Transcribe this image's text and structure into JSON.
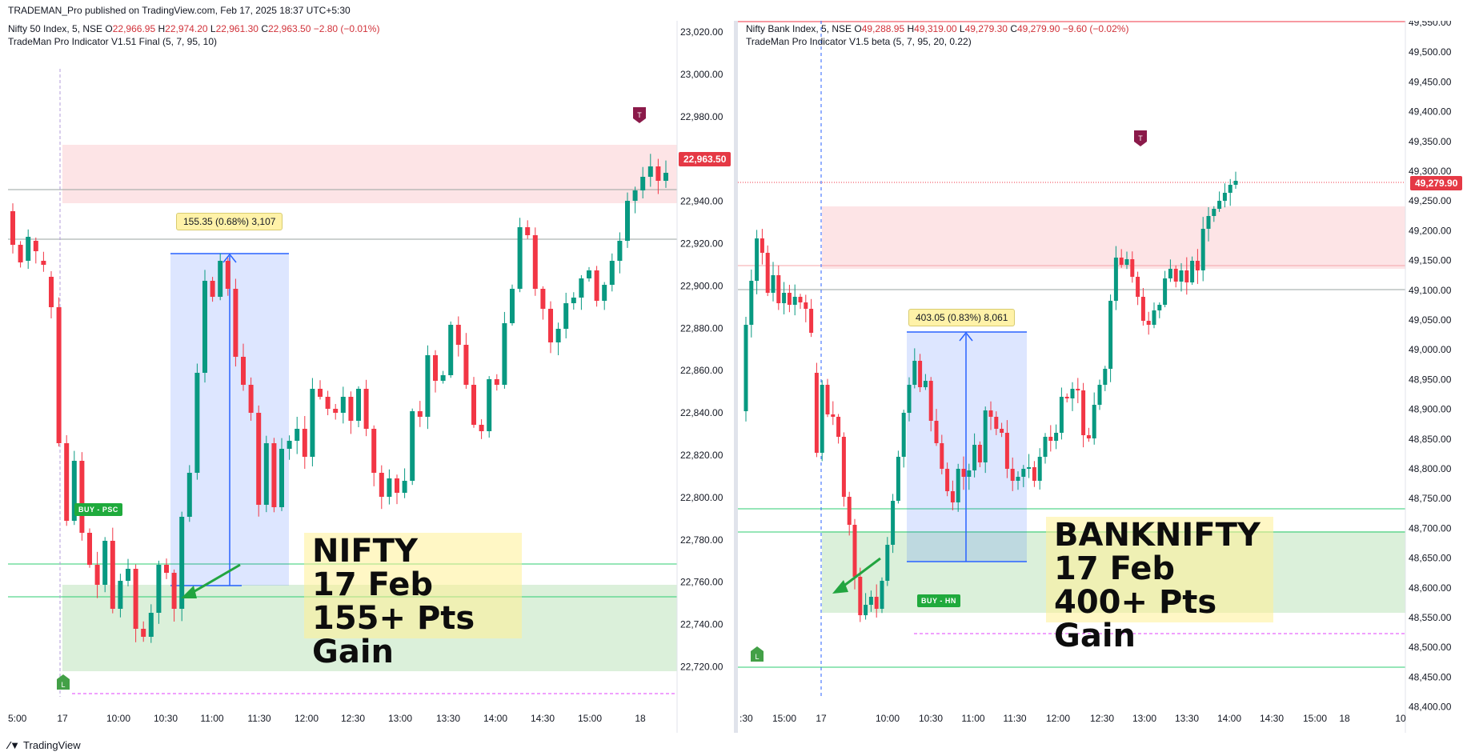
{
  "header": {
    "publisher_line": "TRADEMAN_Pro published on TradingView.com, Feb 17, 2025 18:37 UTC+5:30"
  },
  "left": {
    "symbol": "Nifty 50 Index, 5, NSE",
    "o_label": "O",
    "o": "22,966.95",
    "h_label": "H",
    "h": "22,974.20",
    "l_label": "L",
    "l": "22,961.30",
    "c_label": "C",
    "c": "22,963.50",
    "change": "−2.80 (−0.01%)",
    "indicator": "TradeMan Pro Indicator V1.51 Final (5, 7, 95, 10)",
    "price_axis": [
      "23,020.00",
      "23,000.00",
      "22,980.00",
      "22,960.00",
      "22,940.00",
      "22,920.00",
      "22,900.00",
      "22,880.00",
      "22,860.00",
      "22,840.00",
      "22,820.00",
      "22,800.00",
      "22,780.00",
      "22,760.00",
      "22,740.00",
      "22,720.00"
    ],
    "last_price": "22,963.50",
    "time_axis": [
      "5:00",
      "17",
      "10:00",
      "10:30",
      "11:00",
      "11:30",
      "12:00",
      "12:30",
      "13:00",
      "13:30",
      "14:00",
      "14:30",
      "15:00",
      "18"
    ],
    "measure_label": "155.35 (0.68%) 3,107",
    "buy_tag": "BUY - PSC",
    "t_marker": "T",
    "l_marker": "L",
    "annotation": [
      "NIFTY",
      "17 Feb",
      "155+ Pts Gain"
    ]
  },
  "right": {
    "symbol": "Nifty Bank Index, 5, NSE",
    "o_label": "O",
    "o": "49,288.95",
    "h_label": "H",
    "h": "49,319.00",
    "l_label": "L",
    "l": "49,279.30",
    "c_label": "C",
    "c": "49,279.90",
    "change": "−9.60 (−0.02%)",
    "indicator": "TradeMan Pro Indicator V1.5 beta (5, 7, 95, 20, 0.22)",
    "price_axis": [
      "49,550.00",
      "49,500.00",
      "49,450.00",
      "49,400.00",
      "49,350.00",
      "49,300.00",
      "49,250.00",
      "49,200.00",
      "49,150.00",
      "49,100.00",
      "49,050.00",
      "49,000.00",
      "48,950.00",
      "48,900.00",
      "48,850.00",
      "48,800.00",
      "48,750.00",
      "48,700.00",
      "48,650.00",
      "48,600.00",
      "48,550.00",
      "48,500.00",
      "48,450.00",
      "48,400.00"
    ],
    "last_price": "49,279.90",
    "time_axis": [
      ":30",
      "15:00",
      "17",
      "10:00",
      "10:30",
      "11:00",
      "11:30",
      "12:00",
      "12:30",
      "13:00",
      "13:30",
      "14:00",
      "14:30",
      "15:00",
      "18",
      "10"
    ],
    "measure_label": "403.05 (0.83%) 8,061",
    "buy_tag": "BUY - HN",
    "t_marker": "T",
    "l_marker": "L",
    "annotation": [
      "BANKNIFTY",
      "17 Feb",
      "400+ Pts Gain"
    ]
  },
  "footer": {
    "brand": "TradingView"
  },
  "colors": {
    "up": "#089981",
    "down": "#f23645",
    "accent_blue": "#2962ff",
    "zone_red": "#fde2e4",
    "zone_green": "#d7efd6",
    "buy": "#1faa3c",
    "t_marker": "#8b1a4a"
  }
}
